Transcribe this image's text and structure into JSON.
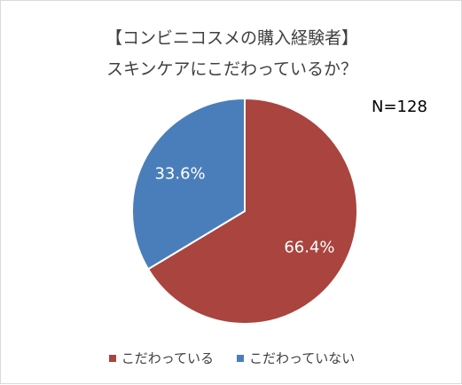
{
  "chart_data": {
    "type": "pie",
    "title": "【コンビニコスメの購入経験者】",
    "subtitle": "スキンケアにこだわっているか？",
    "annotation": "N=128",
    "slices": [
      {
        "label": "こだわっている",
        "value": 66.4,
        "display": "66.4%",
        "color": "#a9443f"
      },
      {
        "label": "こだわっていない",
        "value": 33.6,
        "display": "33.6%",
        "color": "#4a7ebb"
      }
    ],
    "start_angle_deg": 0,
    "direction": "clockwise",
    "legend_position": "bottom",
    "separator_color": "#ffffff"
  }
}
